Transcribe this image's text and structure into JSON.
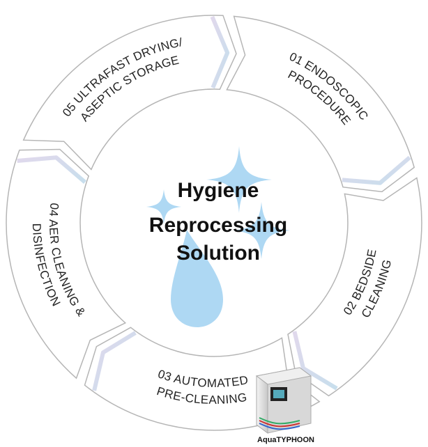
{
  "center": {
    "lines": [
      "Hygiene",
      "Reprocessing",
      "Solution"
    ]
  },
  "steps": [
    {
      "lines": [
        "01 ENDOSCOPIC",
        "PROCEDURE"
      ]
    },
    {
      "lines": [
        "02 BEDSIDE",
        "CLEANING"
      ]
    },
    {
      "lines": [
        "03 AUTOMATED",
        "PRE-CLEANING"
      ]
    },
    {
      "lines": [
        "04 AER CLEANING &",
        "DISINFECTION"
      ]
    },
    {
      "lines": [
        "05 ULTRAFAST DRYING/",
        "ASEPTIC STORAGE"
      ]
    }
  ],
  "device": {
    "caption": "AquaTYPHOON"
  }
}
